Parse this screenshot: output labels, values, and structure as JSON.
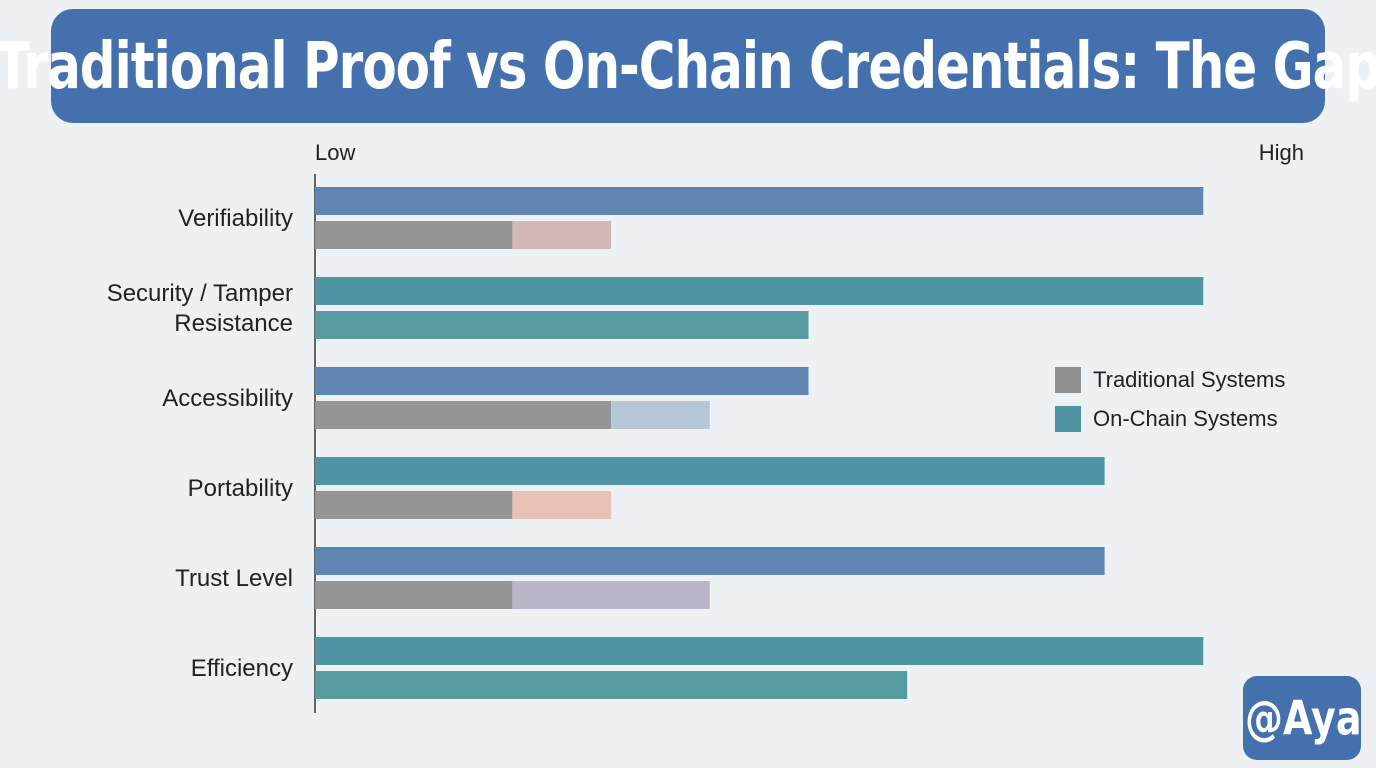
{
  "title": "Traditional Proof vs On-Chain Credentials: The Gap",
  "badge": "@AyaT",
  "chart_data": {
    "type": "bar",
    "orientation": "horizontal",
    "scale_min_label": "Low",
    "scale_max_label": "High",
    "xlim": [
      0,
      10
    ],
    "categories": [
      [
        "Verifiability"
      ],
      [
        "Security / Tamper",
        "Resistance"
      ],
      [
        "Accessibility"
      ],
      [
        "Portability"
      ],
      [
        "Trust Level"
      ],
      [
        "Efficiency"
      ]
    ],
    "rows": [
      {
        "top": {
          "value": 9,
          "color": "#5e86b1"
        },
        "bottom": [
          {
            "value": 2,
            "color": "#959595"
          },
          {
            "value": 1,
            "color": "#d1b7b8"
          }
        ]
      },
      {
        "top": {
          "value": 9,
          "color": "#4f95a4"
        },
        "bottom": [
          {
            "value": 5,
            "color": "#559ba0"
          }
        ]
      },
      {
        "top": {
          "value": 5,
          "color": "#5e86b1"
        },
        "bottom": [
          {
            "value": 3,
            "color": "#959595"
          },
          {
            "value": 1,
            "color": "#b5c7d8"
          }
        ]
      },
      {
        "top": {
          "value": 8,
          "color": "#4f95a4"
        },
        "bottom": [
          {
            "value": 2,
            "color": "#959595"
          },
          {
            "value": 1,
            "color": "#e9c2b3"
          }
        ]
      },
      {
        "top": {
          "value": 8,
          "color": "#5e86b1"
        },
        "bottom": [
          {
            "value": 2,
            "color": "#959595"
          },
          {
            "value": 2,
            "color": "#bcb4c9"
          }
        ]
      },
      {
        "top": {
          "value": 9,
          "color": "#4f95a4"
        },
        "bottom": [
          {
            "value": 6,
            "color": "#559ba0"
          }
        ]
      }
    ],
    "legend": [
      {
        "label": "Traditional Systems",
        "color": "#8f8f8f"
      },
      {
        "label": "On-Chain Systems",
        "color": "#4f95a4"
      }
    ],
    "legend_position": "right",
    "grid": false
  }
}
